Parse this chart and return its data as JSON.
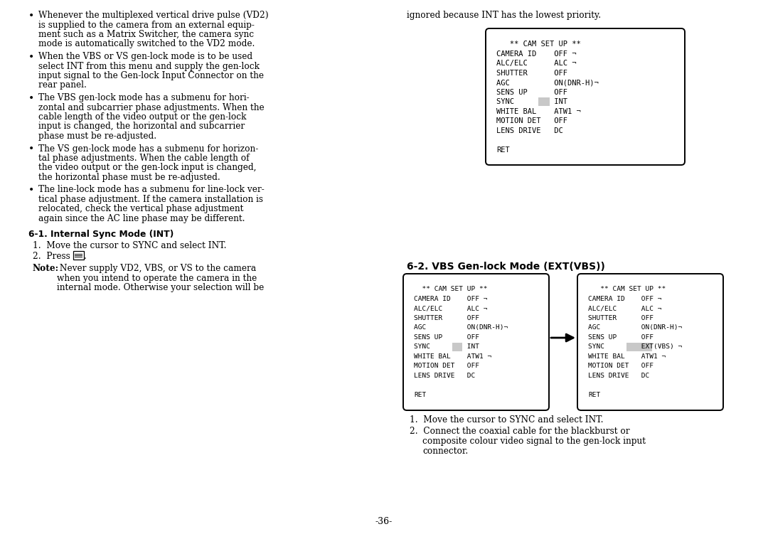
{
  "bg_color": "#ffffff",
  "text_color": "#000000",
  "page_number": "-36-",
  "left_col_bullets": [
    "Whenever the multiplexed vertical drive pulse (VD2)\nis supplied to the camera from an external equip-\nment such as a Matrix Switcher, the camera sync\nmode is automatically switched to the VD2 mode.",
    "When the VBS or VS gen-lock mode is to be used\nselect INT from this menu and supply the gen-lock\ninput signal to the Gen-lock Input Connector on the\nrear panel.",
    "The VBS gen-lock mode has a submenu for hori-\nzontal and subcarrier phase adjustments. When the\ncable length of the video output or the gen-lock\ninput is changed, the horizontal and subcarrier\nphase must be re-adjusted.",
    "The VS gen-lock mode has a submenu for horizon-\ntal phase adjustments. When the cable length of\nthe video output or the gen-lock input is changed,\nthe horizontal phase must be re-adjusted.",
    "The line-lock mode has a submenu for line-lock ver-\ntical phase adjustment. If the camera installation is\nrelocated, check the vertical phase adjustment\nagain since the AC line phase may be different."
  ],
  "section_61_title": "6-1. Internal Sync Mode (INT)",
  "section_61_item1": "Move the cursor to SYNC and select INT.",
  "section_61_item2_pre": "Press ",
  "section_61_item2_post": ".",
  "note_bold": "Note:",
  "note_rest": " Never supply VD2, VBS, or VS to the camera\nwhen you intend to operate the camera in the\ninternal mode. Otherwise your selection will be",
  "right_col_top_text": "ignored because INT has the lowest priority.",
  "cam_setup_1_lines": [
    "   ** CAM SET UP **",
    "CAMERA ID    OFF ¬",
    "ALC/ELC      ALC ¬",
    "SHUTTER      OFF",
    "AGC          ON(DNR-H)¬",
    "SENS UP      OFF",
    "SYNC         INT",
    "WHITE BAL    ATW1 ¬",
    "MOTION DET   OFF",
    "LENS DRIVE   DC",
    "",
    "RET"
  ],
  "cam_setup_1_highlight_row": 6,
  "section_62_title": "6-2. VBS Gen-lock Mode (EXT(VBS))",
  "cam_setup_2a_lines": [
    "  ** CAM SET UP **",
    "CAMERA ID    OFF ¬",
    "ALC/ELC      ALC ¬",
    "SHUTTER      OFF",
    "AGC          ON(DNR-H)¬",
    "SENS UP      OFF",
    "SYNC         INT",
    "WHITE BAL    ATW1 ¬",
    "MOTION DET   OFF",
    "LENS DRIVE   DC",
    "",
    "RET"
  ],
  "cam_setup_2a_highlight_row": 6,
  "cam_setup_2b_lines": [
    "   ** CAM SET UP **",
    "CAMERA ID    OFF ¬",
    "ALC/ELC      ALC ¬",
    "SHUTTER      OFF",
    "AGC          ON(DNR-H)¬",
    "SENS UP      OFF",
    "SYNC         EXT(VBS) ¬",
    "WHITE BAL    ATW1 ¬",
    "MOTION DET   OFF",
    "LENS DRIVE   DC",
    "",
    "RET"
  ],
  "cam_setup_2b_highlight_row": 6,
  "right_col_bottom_item1": "Move the cursor to SYNC and select INT.",
  "right_col_bottom_item2": "Connect the coaxial cable for the blackburst or\ncomposite colour video signal to the gen-lock input\nconnector.",
  "highlight_color": "#c8c8c8"
}
